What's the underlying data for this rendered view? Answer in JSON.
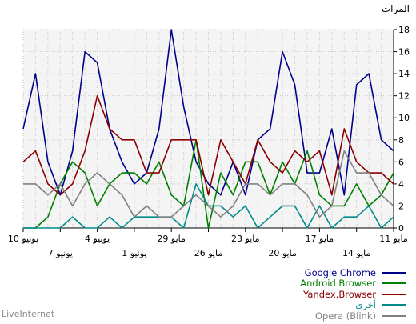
{
  "unit_label": "المرات",
  "brand": "LiveInternet",
  "chart_data": {
    "type": "line",
    "title": "",
    "xlabel": "",
    "ylabel": "المرات",
    "ylim": [
      0,
      18
    ],
    "yticks": [
      0,
      2,
      4,
      6,
      8,
      10,
      12,
      14,
      16,
      18
    ],
    "grid": true,
    "legend_position": "bottom-right",
    "x_direction": "right-to-left",
    "x_tick_labels": [
      "11 مايو",
      "14 مايو",
      "17 مايو",
      "20 مايو",
      "23 مايو",
      "26 مايو",
      "29 مايو",
      "1 يونيو",
      "4 يونيو",
      "7 يونيو",
      "10 يونيو"
    ],
    "series": [
      {
        "name": "Google Chrome",
        "color": "#00008b",
        "values": [
          7,
          8,
          14,
          13,
          3,
          9,
          5,
          5,
          13,
          16,
          9,
          8,
          3,
          6,
          3,
          4,
          6,
          11,
          18,
          9,
          5,
          4,
          6,
          9,
          15,
          16,
          7,
          3,
          6,
          14,
          9
        ]
      },
      {
        "name": "Android Browser",
        "color": "#008000",
        "values": [
          5,
          3,
          2,
          4,
          2,
          2,
          3,
          7,
          4,
          6,
          3,
          6,
          6,
          3,
          5,
          0,
          8,
          2,
          3,
          6,
          4,
          5,
          5,
          4,
          2,
          5,
          6,
          4,
          1,
          0,
          0
        ]
      },
      {
        "name": "Yandex.Browser",
        "color": "#8b0000",
        "values": [
          4,
          5,
          5,
          6,
          9,
          3,
          7,
          6,
          7,
          5,
          6,
          8,
          4,
          6,
          8,
          3,
          8,
          8,
          8,
          5,
          5,
          8,
          8,
          9,
          12,
          7,
          4,
          3,
          4,
          7,
          6
        ]
      },
      {
        "name": "أخرى",
        "color": "#008b8b",
        "values": [
          1,
          0,
          2,
          1,
          1,
          0,
          2,
          0,
          2,
          2,
          1,
          0,
          2,
          1,
          2,
          2,
          4,
          0,
          1,
          1,
          1,
          1,
          0,
          1,
          0,
          0,
          1,
          0,
          0,
          0,
          0
        ]
      },
      {
        "name": "Opera (Blink)",
        "color": "#808080",
        "values": [
          2,
          3,
          5,
          5,
          7,
          2,
          1,
          3,
          4,
          4,
          3,
          4,
          4,
          2,
          1,
          2,
          3,
          2,
          1,
          1,
          2,
          1,
          3,
          4,
          5,
          4,
          2,
          4,
          3,
          4,
          4
        ]
      }
    ]
  }
}
